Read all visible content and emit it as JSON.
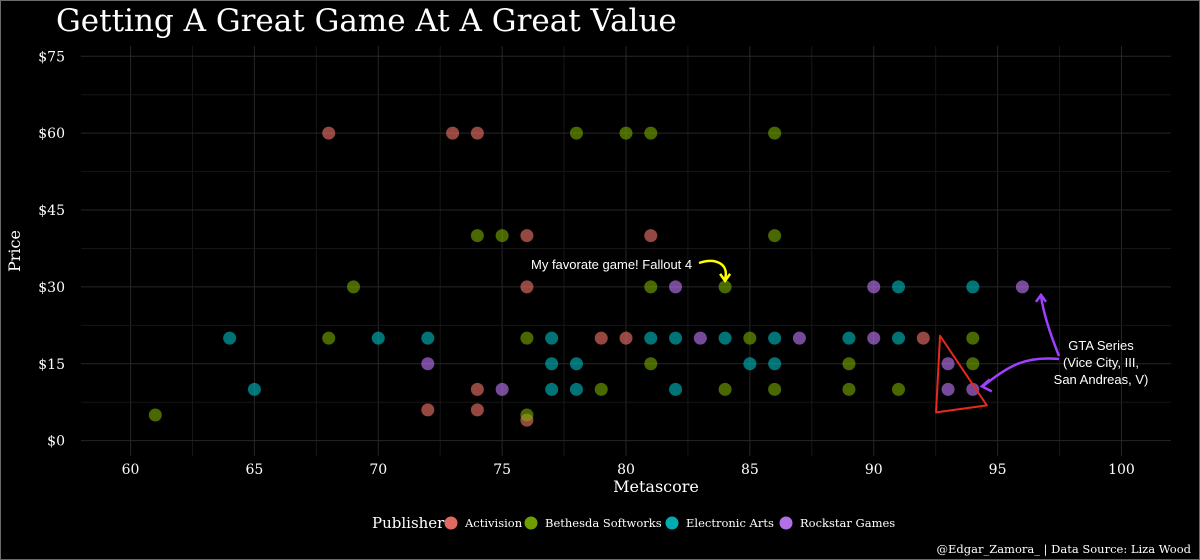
{
  "chart_data": {
    "type": "scatter",
    "title": "Getting A Great Game At A Great Value",
    "xlabel": "Metascore",
    "ylabel": "Price",
    "xlim": [
      58,
      102
    ],
    "ylim": [
      -3,
      77
    ],
    "x_ticks": [
      60,
      65,
      70,
      75,
      80,
      85,
      90,
      95,
      100
    ],
    "y_ticks": [
      0,
      15,
      30,
      45,
      60,
      75
    ],
    "y_tick_labels": [
      "$0",
      "$15",
      "$30",
      "$45",
      "$60",
      "$75"
    ],
    "grid": true,
    "legend": {
      "title": "Publisher",
      "position": "bottom",
      "entries": [
        "Activision",
        "Bethesda Softworks",
        "Electronic Arts",
        "Rockstar Games"
      ]
    },
    "colors": {
      "Activision": "#F8766D",
      "Bethesda Softworks": "#7CAE00",
      "Electronic Arts": "#00BFC4",
      "Rockstar Games": "#C77CFF"
    },
    "series": [
      {
        "name": "Activision",
        "points": [
          [
            68,
            60
          ],
          [
            73,
            60
          ],
          [
            74,
            60
          ],
          [
            76,
            40
          ],
          [
            81,
            40
          ],
          [
            76,
            30
          ],
          [
            79,
            20
          ],
          [
            80,
            20
          ],
          [
            92,
            20
          ],
          [
            72,
            6
          ],
          [
            74,
            10
          ],
          [
            74,
            6
          ],
          [
            76,
            4
          ]
        ]
      },
      {
        "name": "Bethesda Softworks",
        "points": [
          [
            61,
            5
          ],
          [
            68,
            20
          ],
          [
            69,
            30
          ],
          [
            74,
            40
          ],
          [
            75,
            40
          ],
          [
            76,
            20
          ],
          [
            76,
            5
          ],
          [
            78,
            60
          ],
          [
            79,
            10
          ],
          [
            80,
            60
          ],
          [
            81,
            60
          ],
          [
            81,
            30
          ],
          [
            81,
            15
          ],
          [
            84,
            30
          ],
          [
            84,
            10
          ],
          [
            85,
            20
          ],
          [
            86,
            60
          ],
          [
            86,
            40
          ],
          [
            86,
            10
          ],
          [
            89,
            15
          ],
          [
            89,
            10
          ],
          [
            91,
            10
          ],
          [
            94,
            20
          ],
          [
            94,
            15
          ]
        ]
      },
      {
        "name": "Electronic Arts",
        "points": [
          [
            64,
            20
          ],
          [
            65,
            10
          ],
          [
            70,
            20
          ],
          [
            72,
            20
          ],
          [
            77,
            20
          ],
          [
            77,
            15
          ],
          [
            77,
            10
          ],
          [
            78,
            15
          ],
          [
            78,
            10
          ],
          [
            81,
            20
          ],
          [
            82,
            20
          ],
          [
            82,
            10
          ],
          [
            84,
            20
          ],
          [
            85,
            15
          ],
          [
            86,
            20
          ],
          [
            86,
            15
          ],
          [
            89,
            20
          ],
          [
            91,
            30
          ],
          [
            91,
            20
          ],
          [
            94,
            30
          ]
        ]
      },
      {
        "name": "Rockstar Games",
        "points": [
          [
            72,
            15
          ],
          [
            75,
            10
          ],
          [
            82,
            30
          ],
          [
            83,
            20
          ],
          [
            87,
            20
          ],
          [
            90,
            30
          ],
          [
            90,
            20
          ],
          [
            93,
            15
          ],
          [
            93,
            10
          ],
          [
            94,
            10
          ],
          [
            96,
            30
          ]
        ]
      }
    ],
    "annotations": [
      {
        "text": "My favorate game! Fallout 4",
        "color": "#ffffff",
        "arrow_color": "#ffff00",
        "target": [
          84,
          30
        ]
      },
      {
        "text_lines": [
          "GTA Series",
          "(Vice City, III,",
          "San Andreas, V)"
        ],
        "color": "#ffffff",
        "arrow_color": "#a040ff",
        "target": [
          94,
          10
        ]
      }
    ],
    "highlight": {
      "shape": "triangle",
      "color": "#e8291c",
      "around": [
        [
          93,
          15
        ],
        [
          93,
          10
        ],
        [
          94,
          10
        ]
      ]
    },
    "caption": "@Edgar_Zamora_  | Data Source: Liza Wood"
  }
}
